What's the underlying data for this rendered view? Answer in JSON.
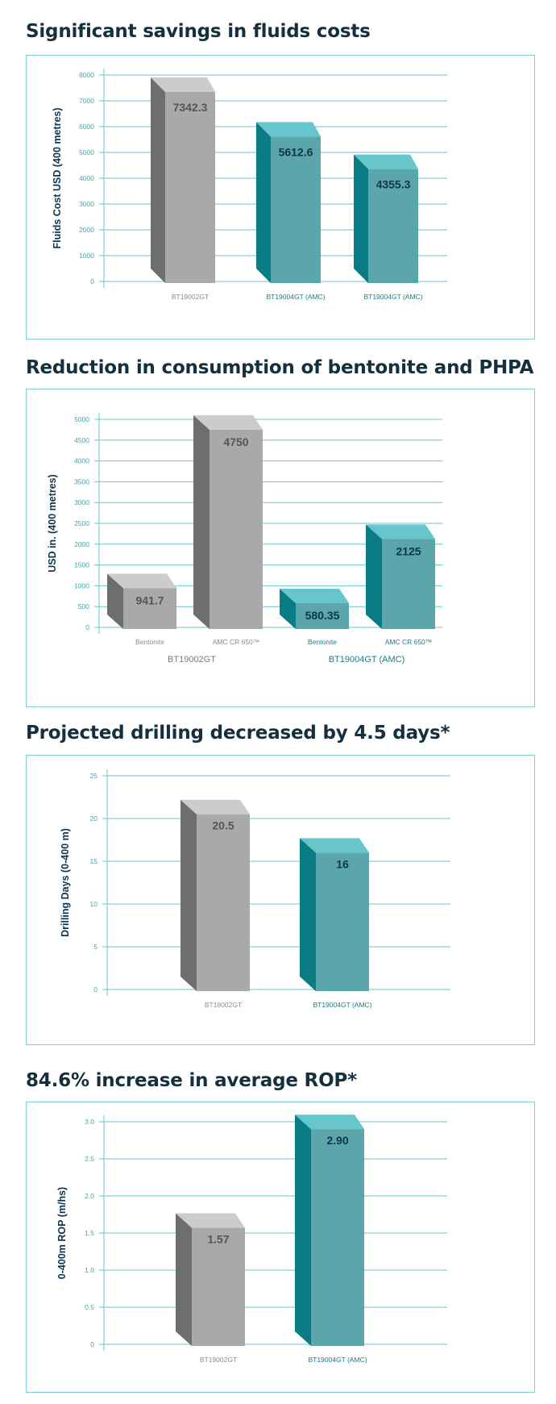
{
  "colors": {
    "title": "#14303e",
    "frame": "#7fd0d4",
    "grid": "#66c6cb",
    "tick": "#3aa9b2",
    "gray_front": "#a9a9a9",
    "gray_side": "#6e6e6e",
    "gray_top": "#cccccc",
    "gray_label": "#555555",
    "teal_front": "#5aa6aa",
    "teal_side": "#0a7c86",
    "teal_top": "#66c6cb",
    "teal_label": "#0e3550",
    "teal_cat": "#1d7a88"
  },
  "sections": [
    {
      "title": "Significant savings in fluids costs"
    },
    {
      "title": "Reduction in consumption of bentonite and PHPA"
    },
    {
      "title": "Projected drilling decreased by 4.5 days*"
    },
    {
      "title": "84.6% increase in average ROP*"
    }
  ],
  "chart_data": [
    {
      "type": "bar",
      "title": "Significant savings in fluids costs",
      "ylabel": "Fluids Cost USD (400 metres)",
      "ylim": [
        0,
        8000
      ],
      "yticks": [
        "0",
        "1000",
        "2000",
        "3000",
        "4000",
        "5000",
        "6000",
        "7000",
        "8000"
      ],
      "categories": [
        "BT19002GT",
        "BT19004GT (AMC)",
        "BT19004GT (AMC)"
      ],
      "values": [
        7342.3,
        5612.6,
        4355.3
      ],
      "value_labels": [
        "7342.3",
        "5612.6",
        "4355.3"
      ],
      "bar_colors": [
        "gray",
        "teal",
        "teal"
      ],
      "grid": true
    },
    {
      "type": "bar",
      "title": "Reduction in consumption of bentonite and PHPA",
      "ylabel": "USD in. (400 metres)",
      "ylim": [
        0,
        5000
      ],
      "yticks": [
        "0",
        "500",
        "1000",
        "1500",
        "2000",
        "2500",
        "3000",
        "3500",
        "4000",
        "4500",
        "5000"
      ],
      "categories": [
        "Bentonite",
        "AMC CR 650™",
        "Bentonite",
        "AMC CR 650™"
      ],
      "groups": [
        "BT19002GT",
        "BT19004GT (AMC)"
      ],
      "values": [
        941.7,
        4750,
        580.35,
        2125
      ],
      "value_labels": [
        "941.7",
        "4750",
        "580.35",
        "2125"
      ],
      "bar_colors": [
        "gray",
        "gray",
        "teal",
        "teal"
      ],
      "grid": true
    },
    {
      "type": "bar",
      "title": "Projected drilling decreased by 4.5 days*",
      "ylabel": "Drilling Days (0-400 m)",
      "ylim": [
        0,
        25
      ],
      "yticks": [
        "0",
        "5",
        "10",
        "15",
        "20",
        "25"
      ],
      "categories": [
        "BT19002GT",
        "BT19004GT (AMC)"
      ],
      "values": [
        20.5,
        16
      ],
      "value_labels": [
        "20.5",
        "16"
      ],
      "bar_colors": [
        "gray",
        "teal"
      ],
      "grid": true
    },
    {
      "type": "bar",
      "title": "84.6% increase in average ROP*",
      "ylabel": "0-400m ROP (m/hs)",
      "ylim": [
        0,
        3.0
      ],
      "yticks": [
        "0",
        "0.5",
        "1.0",
        "1.5",
        "2.0",
        "2.5",
        "3.0"
      ],
      "categories": [
        "BT19002GT",
        "BT19004GT (AMC)"
      ],
      "values": [
        1.57,
        2.9
      ],
      "value_labels": [
        "1.57",
        "2.90"
      ],
      "bar_colors": [
        "gray",
        "teal"
      ],
      "grid": true
    }
  ]
}
